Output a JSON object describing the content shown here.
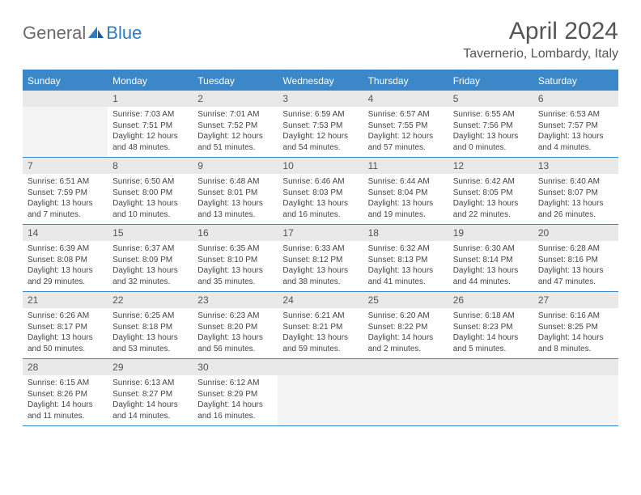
{
  "brand": {
    "part1": "General",
    "part2": "Blue"
  },
  "title": "April 2024",
  "location": "Tavernerio, Lombardy, Italy",
  "colors": {
    "header_blue": "#3b87c8",
    "daynum_bg": "#e9e9e9",
    "empty_bg": "#f4f4f4",
    "text": "#444444",
    "title_text": "#555555"
  },
  "typography": {
    "title_fontsize": 30,
    "location_fontsize": 16,
    "weekday_fontsize": 12,
    "daynum_fontsize": 12,
    "body_fontsize": 10
  },
  "weekdays": [
    "Sunday",
    "Monday",
    "Tuesday",
    "Wednesday",
    "Thursday",
    "Friday",
    "Saturday"
  ],
  "weeks": [
    [
      {
        "n": "",
        "lines": []
      },
      {
        "n": "1",
        "lines": [
          "Sunrise: 7:03 AM",
          "Sunset: 7:51 PM",
          "Daylight: 12 hours",
          "and 48 minutes."
        ]
      },
      {
        "n": "2",
        "lines": [
          "Sunrise: 7:01 AM",
          "Sunset: 7:52 PM",
          "Daylight: 12 hours",
          "and 51 minutes."
        ]
      },
      {
        "n": "3",
        "lines": [
          "Sunrise: 6:59 AM",
          "Sunset: 7:53 PM",
          "Daylight: 12 hours",
          "and 54 minutes."
        ]
      },
      {
        "n": "4",
        "lines": [
          "Sunrise: 6:57 AM",
          "Sunset: 7:55 PM",
          "Daylight: 12 hours",
          "and 57 minutes."
        ]
      },
      {
        "n": "5",
        "lines": [
          "Sunrise: 6:55 AM",
          "Sunset: 7:56 PM",
          "Daylight: 13 hours",
          "and 0 minutes."
        ]
      },
      {
        "n": "6",
        "lines": [
          "Sunrise: 6:53 AM",
          "Sunset: 7:57 PM",
          "Daylight: 13 hours",
          "and 4 minutes."
        ]
      }
    ],
    [
      {
        "n": "7",
        "lines": [
          "Sunrise: 6:51 AM",
          "Sunset: 7:59 PM",
          "Daylight: 13 hours",
          "and 7 minutes."
        ]
      },
      {
        "n": "8",
        "lines": [
          "Sunrise: 6:50 AM",
          "Sunset: 8:00 PM",
          "Daylight: 13 hours",
          "and 10 minutes."
        ]
      },
      {
        "n": "9",
        "lines": [
          "Sunrise: 6:48 AM",
          "Sunset: 8:01 PM",
          "Daylight: 13 hours",
          "and 13 minutes."
        ]
      },
      {
        "n": "10",
        "lines": [
          "Sunrise: 6:46 AM",
          "Sunset: 8:03 PM",
          "Daylight: 13 hours",
          "and 16 minutes."
        ]
      },
      {
        "n": "11",
        "lines": [
          "Sunrise: 6:44 AM",
          "Sunset: 8:04 PM",
          "Daylight: 13 hours",
          "and 19 minutes."
        ]
      },
      {
        "n": "12",
        "lines": [
          "Sunrise: 6:42 AM",
          "Sunset: 8:05 PM",
          "Daylight: 13 hours",
          "and 22 minutes."
        ]
      },
      {
        "n": "13",
        "lines": [
          "Sunrise: 6:40 AM",
          "Sunset: 8:07 PM",
          "Daylight: 13 hours",
          "and 26 minutes."
        ]
      }
    ],
    [
      {
        "n": "14",
        "lines": [
          "Sunrise: 6:39 AM",
          "Sunset: 8:08 PM",
          "Daylight: 13 hours",
          "and 29 minutes."
        ]
      },
      {
        "n": "15",
        "lines": [
          "Sunrise: 6:37 AM",
          "Sunset: 8:09 PM",
          "Daylight: 13 hours",
          "and 32 minutes."
        ]
      },
      {
        "n": "16",
        "lines": [
          "Sunrise: 6:35 AM",
          "Sunset: 8:10 PM",
          "Daylight: 13 hours",
          "and 35 minutes."
        ]
      },
      {
        "n": "17",
        "lines": [
          "Sunrise: 6:33 AM",
          "Sunset: 8:12 PM",
          "Daylight: 13 hours",
          "and 38 minutes."
        ]
      },
      {
        "n": "18",
        "lines": [
          "Sunrise: 6:32 AM",
          "Sunset: 8:13 PM",
          "Daylight: 13 hours",
          "and 41 minutes."
        ]
      },
      {
        "n": "19",
        "lines": [
          "Sunrise: 6:30 AM",
          "Sunset: 8:14 PM",
          "Daylight: 13 hours",
          "and 44 minutes."
        ]
      },
      {
        "n": "20",
        "lines": [
          "Sunrise: 6:28 AM",
          "Sunset: 8:16 PM",
          "Daylight: 13 hours",
          "and 47 minutes."
        ]
      }
    ],
    [
      {
        "n": "21",
        "lines": [
          "Sunrise: 6:26 AM",
          "Sunset: 8:17 PM",
          "Daylight: 13 hours",
          "and 50 minutes."
        ]
      },
      {
        "n": "22",
        "lines": [
          "Sunrise: 6:25 AM",
          "Sunset: 8:18 PM",
          "Daylight: 13 hours",
          "and 53 minutes."
        ]
      },
      {
        "n": "23",
        "lines": [
          "Sunrise: 6:23 AM",
          "Sunset: 8:20 PM",
          "Daylight: 13 hours",
          "and 56 minutes."
        ]
      },
      {
        "n": "24",
        "lines": [
          "Sunrise: 6:21 AM",
          "Sunset: 8:21 PM",
          "Daylight: 13 hours",
          "and 59 minutes."
        ]
      },
      {
        "n": "25",
        "lines": [
          "Sunrise: 6:20 AM",
          "Sunset: 8:22 PM",
          "Daylight: 14 hours",
          "and 2 minutes."
        ]
      },
      {
        "n": "26",
        "lines": [
          "Sunrise: 6:18 AM",
          "Sunset: 8:23 PM",
          "Daylight: 14 hours",
          "and 5 minutes."
        ]
      },
      {
        "n": "27",
        "lines": [
          "Sunrise: 6:16 AM",
          "Sunset: 8:25 PM",
          "Daylight: 14 hours",
          "and 8 minutes."
        ]
      }
    ],
    [
      {
        "n": "28",
        "lines": [
          "Sunrise: 6:15 AM",
          "Sunset: 8:26 PM",
          "Daylight: 14 hours",
          "and 11 minutes."
        ]
      },
      {
        "n": "29",
        "lines": [
          "Sunrise: 6:13 AM",
          "Sunset: 8:27 PM",
          "Daylight: 14 hours",
          "and 14 minutes."
        ]
      },
      {
        "n": "30",
        "lines": [
          "Sunrise: 6:12 AM",
          "Sunset: 8:29 PM",
          "Daylight: 14 hours",
          "and 16 minutes."
        ]
      },
      {
        "n": "",
        "lines": []
      },
      {
        "n": "",
        "lines": []
      },
      {
        "n": "",
        "lines": []
      },
      {
        "n": "",
        "lines": []
      }
    ]
  ]
}
